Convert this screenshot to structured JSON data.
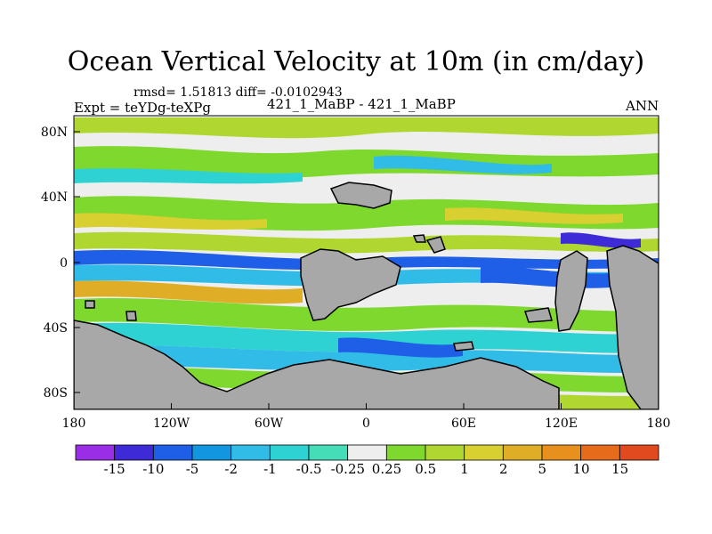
{
  "title": "Ocean Vertical Velocity at 10m (in cm/day)",
  "stats": "rmsd= 1.51813  diff= -0.0102943",
  "expt_label": "Expt = teYDg-teXPg",
  "comparison": "421_1_MaBP - 421_1_MaBP",
  "season": "ANN",
  "axes": {
    "lat_ticks": [
      "80N",
      "40N",
      "0",
      "40S",
      "80S"
    ],
    "lon_ticks": [
      "180",
      "120W",
      "60W",
      "0",
      "60E",
      "120E",
      "180"
    ]
  },
  "colorbar": {
    "colors": [
      "#9a2ee6",
      "#3e2ad6",
      "#1f5ee6",
      "#1296e0",
      "#30bce6",
      "#2ed2d2",
      "#44ddb8",
      "#eeeeee",
      "#7ed82e",
      "#b0d630",
      "#d8cf30",
      "#e0ae26",
      "#e8901e",
      "#e66c1c",
      "#e04a1e"
    ],
    "labels": [
      "-15",
      "-10",
      "-5",
      "-2",
      "-1",
      "-0.5",
      "-0.25",
      "0.25",
      "0.5",
      "1",
      "2",
      "5",
      "10",
      "15"
    ]
  },
  "map_colors": {
    "land": "#a8a8a8",
    "neutral": "#eeeeee",
    "green": "#7ed82e",
    "lightgreen": "#b0d630",
    "yellow": "#d8cf30",
    "orange": "#e0ae26",
    "cyan": "#30bce6",
    "teal": "#2ed2d2",
    "blue": "#1f5ee6",
    "deepblue": "#3e2ad6"
  }
}
